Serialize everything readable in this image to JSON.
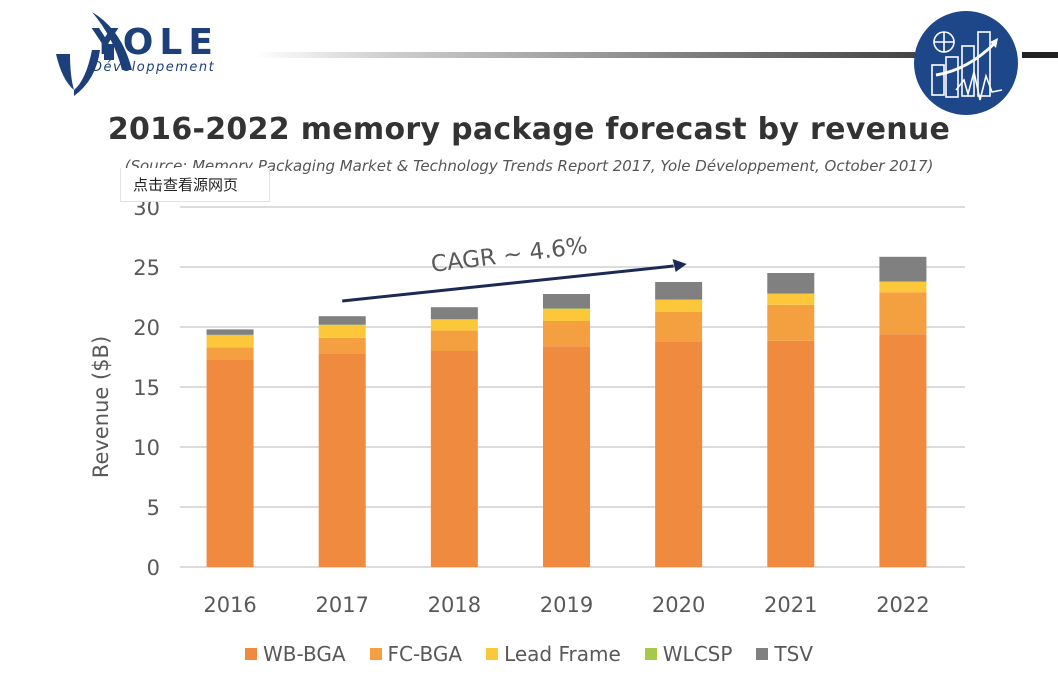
{
  "header": {
    "logo_word": "YOLE",
    "logo_subtitle": "Développement",
    "badge_icon": "analytics-chart-icon"
  },
  "tooltip": {
    "label": "点击查看源网页"
  },
  "chart_data": {
    "type": "bar",
    "stacked": true,
    "title": "2016-2022 memory package forecast by revenue",
    "subtitle": "(Source: Memory Packaging Market & Technology Trends Report 2017, Yole Développement, October 2017)",
    "xlabel": "",
    "ylabel": "Revenue ($B)",
    "ylim": [
      0,
      30
    ],
    "yticks": [
      0,
      5,
      10,
      15,
      20,
      25,
      30
    ],
    "grid": true,
    "legend_position": "bottom",
    "categories": [
      "2016",
      "2017",
      "2018",
      "2019",
      "2020",
      "2021",
      "2022"
    ],
    "series": [
      {
        "name": "WB-BGA",
        "color": "#ef8a3e",
        "values": [
          17.25,
          17.75,
          18.0,
          18.4,
          18.75,
          18.85,
          19.4
        ]
      },
      {
        "name": "FC-BGA",
        "color": "#f5a040",
        "values": [
          1.05,
          1.35,
          1.7,
          2.1,
          2.5,
          3.0,
          3.5
        ]
      },
      {
        "name": "Lead Frame",
        "color": "#fcc83a",
        "values": [
          1.0,
          1.05,
          0.9,
          1.0,
          1.0,
          0.9,
          0.85
        ]
      },
      {
        "name": "WLCSP",
        "color": "#a6c94a",
        "values": [
          0.05,
          0.05,
          0.05,
          0.05,
          0.05,
          0.05,
          0.05
        ]
      },
      {
        "name": "TSV",
        "color": "#808080",
        "values": [
          0.45,
          0.7,
          1.0,
          1.2,
          1.45,
          1.7,
          2.05
        ]
      }
    ],
    "annotations": [
      {
        "text": "CAGR ~ 4.6%",
        "type": "arrow",
        "from_category": "2017",
        "to_category": "2020"
      }
    ]
  }
}
